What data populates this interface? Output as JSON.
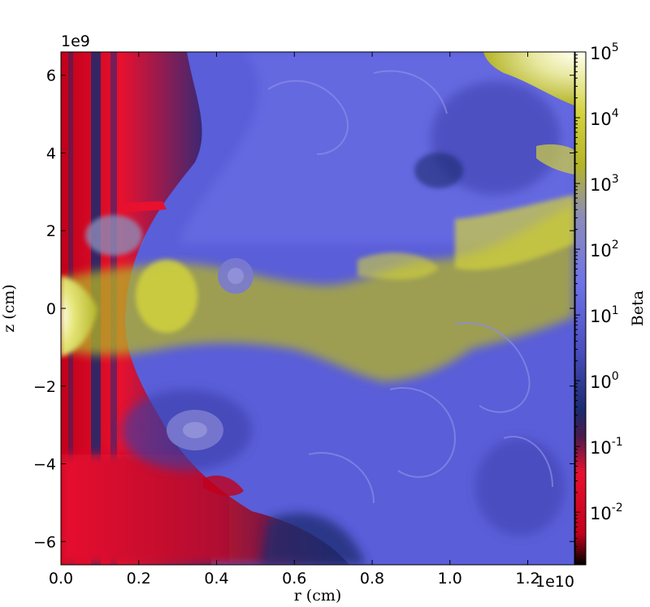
{
  "chart_data": {
    "type": "heatmap",
    "xlabel": "r (cm)",
    "ylabel": "z (cm)",
    "x_offset_label": "1e10",
    "y_offset_label": "1e9",
    "xlim": [
      0.0,
      1.32
    ],
    "ylim": [
      -6.6,
      6.6
    ],
    "x_ticks": [
      0.0,
      0.2,
      0.4,
      0.6,
      0.8,
      1.0,
      1.2
    ],
    "x_tick_labels": [
      "0.0",
      "0.2",
      "0.4",
      "0.6",
      "0.8",
      "1.0",
      "1.2"
    ],
    "y_ticks": [
      -6,
      -4,
      -2,
      0,
      2,
      4,
      6
    ],
    "y_tick_labels": [
      "−6",
      "−4",
      "−2",
      "0",
      "2",
      "4",
      "6"
    ],
    "colorbar": {
      "label": "Beta",
      "scale": "log",
      "range": [
        -2.8,
        5
      ],
      "ticks": [
        {
          "base": "10",
          "exp": "5",
          "log": 5
        },
        {
          "base": "10",
          "exp": "4",
          "log": 4
        },
        {
          "base": "10",
          "exp": "3",
          "log": 3
        },
        {
          "base": "10",
          "exp": "2",
          "log": 2
        },
        {
          "base": "10",
          "exp": "1",
          "log": 1
        },
        {
          "base": "10",
          "exp": "0",
          "log": 0
        },
        {
          "base": "10",
          "exp": "-1",
          "log": -1
        },
        {
          "base": "10",
          "exp": "-2",
          "log": -2
        }
      ],
      "colors": {
        "lowest": "#000000",
        "low": "#c0001a",
        "red": "#e8102e",
        "dark_blue": "#1a2a6e",
        "mid_blue": "#5a5ed8",
        "blue": "#6e72e8",
        "gray_violet": "#8c8cb8",
        "olive": "#b4b428",
        "yellow": "#d2d23c",
        "pale": "#fffff0"
      }
    }
  }
}
